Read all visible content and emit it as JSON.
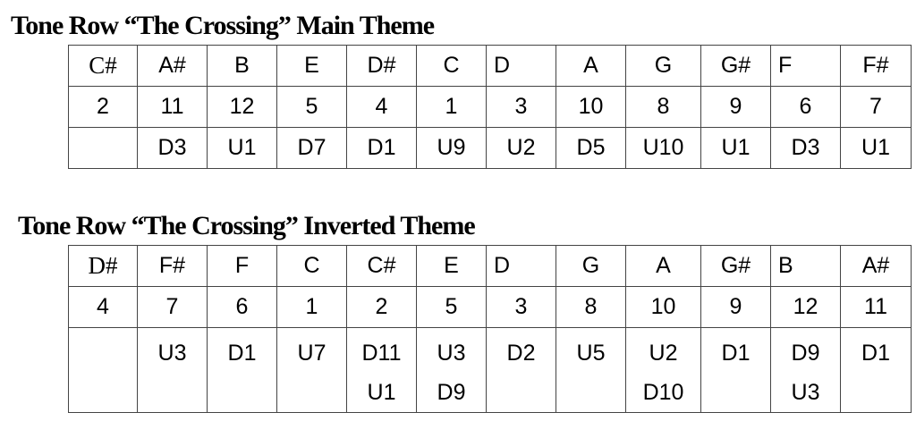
{
  "main_theme": {
    "title": "Tone Row “The Crossing” Main Theme",
    "notes": [
      "C#",
      "A#",
      "B",
      "E",
      "D#",
      "C",
      "D",
      "A",
      "G",
      "G#",
      "F",
      "F#"
    ],
    "numbers": [
      "2",
      "11",
      "12",
      "5",
      "4",
      "1",
      "3",
      "10",
      "8",
      "9",
      "6",
      "7"
    ],
    "intervals": [
      [],
      [
        "D3"
      ],
      [
        "U1"
      ],
      [
        "D7"
      ],
      [
        "D1"
      ],
      [
        "U9"
      ],
      [
        "U2"
      ],
      [
        "D5"
      ],
      [
        "U10"
      ],
      [
        "U1"
      ],
      [
        "D3"
      ],
      [
        "U1"
      ]
    ]
  },
  "inverted_theme": {
    "title": "Tone Row “The Crossing” Inverted Theme",
    "notes": [
      "D#",
      "F#",
      "F",
      "C",
      "C#",
      "E",
      "D",
      "G",
      "A",
      "G#",
      "B",
      "A#"
    ],
    "numbers": [
      "4",
      "7",
      "6",
      "1",
      "2",
      "5",
      "3",
      "8",
      "10",
      "9",
      "12",
      "11"
    ],
    "intervals": [
      [],
      [
        "U3"
      ],
      [
        "D1"
      ],
      [
        "U7"
      ],
      [
        "D11",
        "U1"
      ],
      [
        "U3",
        "D9"
      ],
      [
        "D2"
      ],
      [
        "U5"
      ],
      [
        "U2",
        "D10"
      ],
      [
        "D1"
      ],
      [
        "D9",
        "U3"
      ],
      [
        "D1"
      ]
    ]
  }
}
